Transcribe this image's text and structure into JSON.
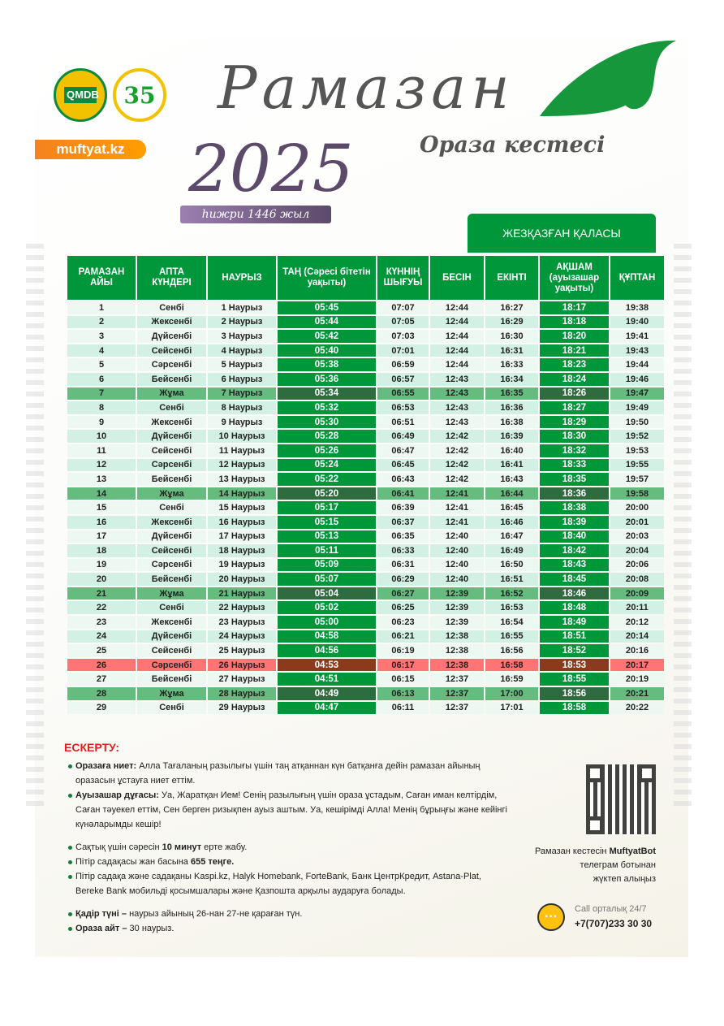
{
  "header": {
    "logo1_text": "QMDB",
    "logo2_text": "35",
    "site": "muftyat.kz",
    "title": "Рамазан",
    "subtitle": "Ораза кестесі",
    "year": "2025",
    "hijri": "һижри 1446 жыл",
    "city": "ЖЕЗҚАЗҒАН ҚАЛАСЫ"
  },
  "colors": {
    "green": "#00963a",
    "friday": "#66bb7f",
    "qadr": "#ff7575",
    "orange": "#f58220",
    "warning": "#e41e1e"
  },
  "table": {
    "columns": [
      "РАМАЗАН АЙЫ",
      "АПТА КҮНДЕРІ",
      "НАУРЫЗ",
      "ТАҢ (Сәресі бітетін уақыты)",
      "КҮННІҢ ШЫҒУЫ",
      "БЕСІН",
      "ЕКІНТІ",
      "АҚШАМ (ауызашар уақыты)",
      "ҚҰПТАН"
    ],
    "rows": [
      {
        "day": "1",
        "weekday": "Сенбі",
        "date": "1 Наурыз",
        "tan": "05:45",
        "sunrise": "07:07",
        "besin": "12:44",
        "ekinti": "16:27",
        "aqsham": "18:17",
        "quptan": "19:38"
      },
      {
        "day": "2",
        "weekday": "Жексенбі",
        "date": "2 Наурыз",
        "tan": "05:44",
        "sunrise": "07:05",
        "besin": "12:44",
        "ekinti": "16:29",
        "aqsham": "18:18",
        "quptan": "19:40"
      },
      {
        "day": "3",
        "weekday": "Дүйсенбі",
        "date": "3 Наурыз",
        "tan": "05:42",
        "sunrise": "07:03",
        "besin": "12:44",
        "ekinti": "16:30",
        "aqsham": "18:20",
        "quptan": "19:41"
      },
      {
        "day": "4",
        "weekday": "Сейсенбі",
        "date": "4 Наурыз",
        "tan": "05:40",
        "sunrise": "07:01",
        "besin": "12:44",
        "ekinti": "16:31",
        "aqsham": "18:21",
        "quptan": "19:43"
      },
      {
        "day": "5",
        "weekday": "Сәрсенбі",
        "date": "5 Наурыз",
        "tan": "05:38",
        "sunrise": "06:59",
        "besin": "12:44",
        "ekinti": "16:33",
        "aqsham": "18:23",
        "quptan": "19:44"
      },
      {
        "day": "6",
        "weekday": "Бейсенбі",
        "date": "6 Наурыз",
        "tan": "05:36",
        "sunrise": "06:57",
        "besin": "12:43",
        "ekinti": "16:34",
        "aqsham": "18:24",
        "quptan": "19:46"
      },
      {
        "day": "7",
        "weekday": "Жұма",
        "date": "7 Наурыз",
        "tan": "05:34",
        "sunrise": "06:55",
        "besin": "12:43",
        "ekinti": "16:35",
        "aqsham": "18:26",
        "quptan": "19:47",
        "style": "friday"
      },
      {
        "day": "8",
        "weekday": "Сенбі",
        "date": "8 Наурыз",
        "tan": "05:32",
        "sunrise": "06:53",
        "besin": "12:43",
        "ekinti": "16:36",
        "aqsham": "18:27",
        "quptan": "19:49"
      },
      {
        "day": "9",
        "weekday": "Жексенбі",
        "date": "9 Наурыз",
        "tan": "05:30",
        "sunrise": "06:51",
        "besin": "12:43",
        "ekinti": "16:38",
        "aqsham": "18:29",
        "quptan": "19:50"
      },
      {
        "day": "10",
        "weekday": "Дүйсенбі",
        "date": "10 Наурыз",
        "tan": "05:28",
        "sunrise": "06:49",
        "besin": "12:42",
        "ekinti": "16:39",
        "aqsham": "18:30",
        "quptan": "19:52"
      },
      {
        "day": "11",
        "weekday": "Сейсенбі",
        "date": "11 Наурыз",
        "tan": "05:26",
        "sunrise": "06:47",
        "besin": "12:42",
        "ekinti": "16:40",
        "aqsham": "18:32",
        "quptan": "19:53"
      },
      {
        "day": "12",
        "weekday": "Сәрсенбі",
        "date": "12 Наурыз",
        "tan": "05:24",
        "sunrise": "06:45",
        "besin": "12:42",
        "ekinti": "16:41",
        "aqsham": "18:33",
        "quptan": "19:55"
      },
      {
        "day": "13",
        "weekday": "Бейсенбі",
        "date": "13 Наурыз",
        "tan": "05:22",
        "sunrise": "06:43",
        "besin": "12:42",
        "ekinti": "16:43",
        "aqsham": "18:35",
        "quptan": "19:57"
      },
      {
        "day": "14",
        "weekday": "Жұма",
        "date": "14 Наурыз",
        "tan": "05:20",
        "sunrise": "06:41",
        "besin": "12:41",
        "ekinti": "16:44",
        "aqsham": "18:36",
        "quptan": "19:58",
        "style": "friday"
      },
      {
        "day": "15",
        "weekday": "Сенбі",
        "date": "15 Наурыз",
        "tan": "05:17",
        "sunrise": "06:39",
        "besin": "12:41",
        "ekinti": "16:45",
        "aqsham": "18:38",
        "quptan": "20:00"
      },
      {
        "day": "16",
        "weekday": "Жексенбі",
        "date": "16 Наурыз",
        "tan": "05:15",
        "sunrise": "06:37",
        "besin": "12:41",
        "ekinti": "16:46",
        "aqsham": "18:39",
        "quptan": "20:01"
      },
      {
        "day": "17",
        "weekday": "Дүйсенбі",
        "date": "17 Наурыз",
        "tan": "05:13",
        "sunrise": "06:35",
        "besin": "12:40",
        "ekinti": "16:47",
        "aqsham": "18:40",
        "quptan": "20:03"
      },
      {
        "day": "18",
        "weekday": "Сейсенбі",
        "date": "18 Наурыз",
        "tan": "05:11",
        "sunrise": "06:33",
        "besin": "12:40",
        "ekinti": "16:49",
        "aqsham": "18:42",
        "quptan": "20:04"
      },
      {
        "day": "19",
        "weekday": "Сәрсенбі",
        "date": "19 Наурыз",
        "tan": "05:09",
        "sunrise": "06:31",
        "besin": "12:40",
        "ekinti": "16:50",
        "aqsham": "18:43",
        "quptan": "20:06"
      },
      {
        "day": "20",
        "weekday": "Бейсенбі",
        "date": "20 Наурыз",
        "tan": "05:07",
        "sunrise": "06:29",
        "besin": "12:40",
        "ekinti": "16:51",
        "aqsham": "18:45",
        "quptan": "20:08"
      },
      {
        "day": "21",
        "weekday": "Жұма",
        "date": "21 Наурыз",
        "tan": "05:04",
        "sunrise": "06:27",
        "besin": "12:39",
        "ekinti": "16:52",
        "aqsham": "18:46",
        "quptan": "20:09",
        "style": "friday"
      },
      {
        "day": "22",
        "weekday": "Сенбі",
        "date": "22 Наурыз",
        "tan": "05:02",
        "sunrise": "06:25",
        "besin": "12:39",
        "ekinti": "16:53",
        "aqsham": "18:48",
        "quptan": "20:11"
      },
      {
        "day": "23",
        "weekday": "Жексенбі",
        "date": "23 Наурыз",
        "tan": "05:00",
        "sunrise": "06:23",
        "besin": "12:39",
        "ekinti": "16:54",
        "aqsham": "18:49",
        "quptan": "20:12"
      },
      {
        "day": "24",
        "weekday": "Дүйсенбі",
        "date": "24 Наурыз",
        "tan": "04:58",
        "sunrise": "06:21",
        "besin": "12:38",
        "ekinti": "16:55",
        "aqsham": "18:51",
        "quptan": "20:14"
      },
      {
        "day": "25",
        "weekday": "Сейсенбі",
        "date": "25 Наурыз",
        "tan": "04:56",
        "sunrise": "06:19",
        "besin": "12:38",
        "ekinti": "16:56",
        "aqsham": "18:52",
        "quptan": "20:16"
      },
      {
        "day": "26",
        "weekday": "Сәрсенбі",
        "date": "26 Наурыз",
        "tan": "04:53",
        "sunrise": "06:17",
        "besin": "12:38",
        "ekinti": "16:58",
        "aqsham": "18:53",
        "quptan": "20:17",
        "style": "qadr"
      },
      {
        "day": "27",
        "weekday": "Бейсенбі",
        "date": "27 Наурыз",
        "tan": "04:51",
        "sunrise": "06:15",
        "besin": "12:37",
        "ekinti": "16:59",
        "aqsham": "18:55",
        "quptan": "20:19"
      },
      {
        "day": "28",
        "weekday": "Жұма",
        "date": "28 Наурыз",
        "tan": "04:49",
        "sunrise": "06:13",
        "besin": "12:37",
        "ekinti": "17:00",
        "aqsham": "18:56",
        "quptan": "20:21",
        "style": "friday"
      },
      {
        "day": "29",
        "weekday": "Сенбі",
        "date": "29 Наурыз",
        "tan": "04:47",
        "sunrise": "06:11",
        "besin": "12:37",
        "ekinti": "17:01",
        "aqsham": "18:58",
        "quptan": "20:22"
      }
    ]
  },
  "notes": {
    "title": "ЕСКЕРТУ:",
    "groups": [
      [
        {
          "bold": "Оразаға ниет:",
          "text": " Алла Тағаланың разылығы үшін таң атқаннан күн батқанға дейін рамазан айының оразасын ұстауға ниет еттім."
        },
        {
          "bold": "Ауызашар дұғасы:",
          "text": " Уа, Жаратқан Ием! Сенің разылығың үшін ораза ұстадым, Саған иман келтірдім, Саған тәуекел еттім, Сен берген ризықпен ауыз аштым. Уа, кешірімді Алла! Менің бұрыңғы және кейінгі күнәларымды кешір!"
        }
      ],
      [
        {
          "pre": "Сақтық үшін сәресін ",
          "bold": "10 минут",
          "text": " ерте жабу."
        },
        {
          "pre": "Пітір садақасы жан басына ",
          "bold": "655 теңге.",
          "text": ""
        },
        {
          "pre": "Пітір садақа және садақаны Kaspi.kz, Halyk Homebank, ForteBank, Банк ЦентрКредит, Astana-Plat, Bereke Bank мобильді қосымшалары және Қазпошта арқылы аударуға болады.",
          "bold": "",
          "text": ""
        }
      ],
      [
        {
          "bold": "Қадір түні –",
          "text": " наурыз айының 26-нан 27-не қараған түн."
        },
        {
          "bold": "Ораза айт –",
          "text": " 30 наурыз."
        }
      ]
    ]
  },
  "bot": {
    "pre": "Рамазан кестесін ",
    "bold": "MuftyatBot",
    "line2": "телеграм ботынан",
    "line3": "жүктеп алыңыз"
  },
  "call": {
    "label": "Call орталық 24/7",
    "phone": "+7(707)233 30 30",
    "icon": "headset-chat-icon"
  }
}
